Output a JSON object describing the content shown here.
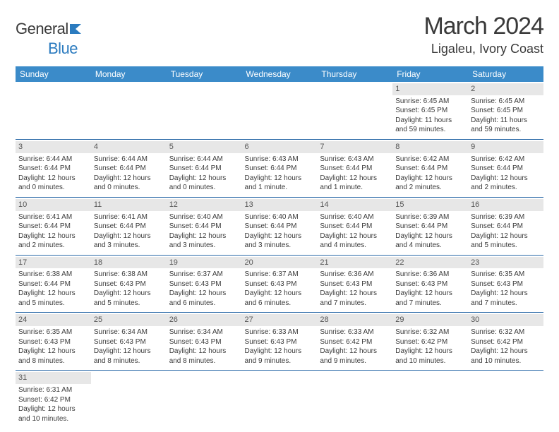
{
  "logo": {
    "text1": "General",
    "text2": "Blue",
    "icon_color": "#2b7bbf"
  },
  "title": "March 2024",
  "location": "Ligaleu, Ivory Coast",
  "colors": {
    "header_bg": "#3b8bc9",
    "header_text": "#ffffff",
    "row_divider": "#2b6aa8",
    "daynum_bg": "#e7e7e7",
    "text": "#3a3a3a"
  },
  "day_headers": [
    "Sunday",
    "Monday",
    "Tuesday",
    "Wednesday",
    "Thursday",
    "Friday",
    "Saturday"
  ],
  "weeks": [
    [
      null,
      null,
      null,
      null,
      null,
      {
        "n": "1",
        "sr": "Sunrise: 6:45 AM",
        "ss": "Sunset: 6:45 PM",
        "dl": "Daylight: 11 hours and 59 minutes."
      },
      {
        "n": "2",
        "sr": "Sunrise: 6:45 AM",
        "ss": "Sunset: 6:45 PM",
        "dl": "Daylight: 11 hours and 59 minutes."
      }
    ],
    [
      {
        "n": "3",
        "sr": "Sunrise: 6:44 AM",
        "ss": "Sunset: 6:44 PM",
        "dl": "Daylight: 12 hours and 0 minutes."
      },
      {
        "n": "4",
        "sr": "Sunrise: 6:44 AM",
        "ss": "Sunset: 6:44 PM",
        "dl": "Daylight: 12 hours and 0 minutes."
      },
      {
        "n": "5",
        "sr": "Sunrise: 6:44 AM",
        "ss": "Sunset: 6:44 PM",
        "dl": "Daylight: 12 hours and 0 minutes."
      },
      {
        "n": "6",
        "sr": "Sunrise: 6:43 AM",
        "ss": "Sunset: 6:44 PM",
        "dl": "Daylight: 12 hours and 1 minute."
      },
      {
        "n": "7",
        "sr": "Sunrise: 6:43 AM",
        "ss": "Sunset: 6:44 PM",
        "dl": "Daylight: 12 hours and 1 minute."
      },
      {
        "n": "8",
        "sr": "Sunrise: 6:42 AM",
        "ss": "Sunset: 6:44 PM",
        "dl": "Daylight: 12 hours and 2 minutes."
      },
      {
        "n": "9",
        "sr": "Sunrise: 6:42 AM",
        "ss": "Sunset: 6:44 PM",
        "dl": "Daylight: 12 hours and 2 minutes."
      }
    ],
    [
      {
        "n": "10",
        "sr": "Sunrise: 6:41 AM",
        "ss": "Sunset: 6:44 PM",
        "dl": "Daylight: 12 hours and 2 minutes."
      },
      {
        "n": "11",
        "sr": "Sunrise: 6:41 AM",
        "ss": "Sunset: 6:44 PM",
        "dl": "Daylight: 12 hours and 3 minutes."
      },
      {
        "n": "12",
        "sr": "Sunrise: 6:40 AM",
        "ss": "Sunset: 6:44 PM",
        "dl": "Daylight: 12 hours and 3 minutes."
      },
      {
        "n": "13",
        "sr": "Sunrise: 6:40 AM",
        "ss": "Sunset: 6:44 PM",
        "dl": "Daylight: 12 hours and 3 minutes."
      },
      {
        "n": "14",
        "sr": "Sunrise: 6:40 AM",
        "ss": "Sunset: 6:44 PM",
        "dl": "Daylight: 12 hours and 4 minutes."
      },
      {
        "n": "15",
        "sr": "Sunrise: 6:39 AM",
        "ss": "Sunset: 6:44 PM",
        "dl": "Daylight: 12 hours and 4 minutes."
      },
      {
        "n": "16",
        "sr": "Sunrise: 6:39 AM",
        "ss": "Sunset: 6:44 PM",
        "dl": "Daylight: 12 hours and 5 minutes."
      }
    ],
    [
      {
        "n": "17",
        "sr": "Sunrise: 6:38 AM",
        "ss": "Sunset: 6:44 PM",
        "dl": "Daylight: 12 hours and 5 minutes."
      },
      {
        "n": "18",
        "sr": "Sunrise: 6:38 AM",
        "ss": "Sunset: 6:43 PM",
        "dl": "Daylight: 12 hours and 5 minutes."
      },
      {
        "n": "19",
        "sr": "Sunrise: 6:37 AM",
        "ss": "Sunset: 6:43 PM",
        "dl": "Daylight: 12 hours and 6 minutes."
      },
      {
        "n": "20",
        "sr": "Sunrise: 6:37 AM",
        "ss": "Sunset: 6:43 PM",
        "dl": "Daylight: 12 hours and 6 minutes."
      },
      {
        "n": "21",
        "sr": "Sunrise: 6:36 AM",
        "ss": "Sunset: 6:43 PM",
        "dl": "Daylight: 12 hours and 7 minutes."
      },
      {
        "n": "22",
        "sr": "Sunrise: 6:36 AM",
        "ss": "Sunset: 6:43 PM",
        "dl": "Daylight: 12 hours and 7 minutes."
      },
      {
        "n": "23",
        "sr": "Sunrise: 6:35 AM",
        "ss": "Sunset: 6:43 PM",
        "dl": "Daylight: 12 hours and 7 minutes."
      }
    ],
    [
      {
        "n": "24",
        "sr": "Sunrise: 6:35 AM",
        "ss": "Sunset: 6:43 PM",
        "dl": "Daylight: 12 hours and 8 minutes."
      },
      {
        "n": "25",
        "sr": "Sunrise: 6:34 AM",
        "ss": "Sunset: 6:43 PM",
        "dl": "Daylight: 12 hours and 8 minutes."
      },
      {
        "n": "26",
        "sr": "Sunrise: 6:34 AM",
        "ss": "Sunset: 6:43 PM",
        "dl": "Daylight: 12 hours and 8 minutes."
      },
      {
        "n": "27",
        "sr": "Sunrise: 6:33 AM",
        "ss": "Sunset: 6:43 PM",
        "dl": "Daylight: 12 hours and 9 minutes."
      },
      {
        "n": "28",
        "sr": "Sunrise: 6:33 AM",
        "ss": "Sunset: 6:42 PM",
        "dl": "Daylight: 12 hours and 9 minutes."
      },
      {
        "n": "29",
        "sr": "Sunrise: 6:32 AM",
        "ss": "Sunset: 6:42 PM",
        "dl": "Daylight: 12 hours and 10 minutes."
      },
      {
        "n": "30",
        "sr": "Sunrise: 6:32 AM",
        "ss": "Sunset: 6:42 PM",
        "dl": "Daylight: 12 hours and 10 minutes."
      }
    ],
    [
      {
        "n": "31",
        "sr": "Sunrise: 6:31 AM",
        "ss": "Sunset: 6:42 PM",
        "dl": "Daylight: 12 hours and 10 minutes."
      },
      null,
      null,
      null,
      null,
      null,
      null
    ]
  ]
}
